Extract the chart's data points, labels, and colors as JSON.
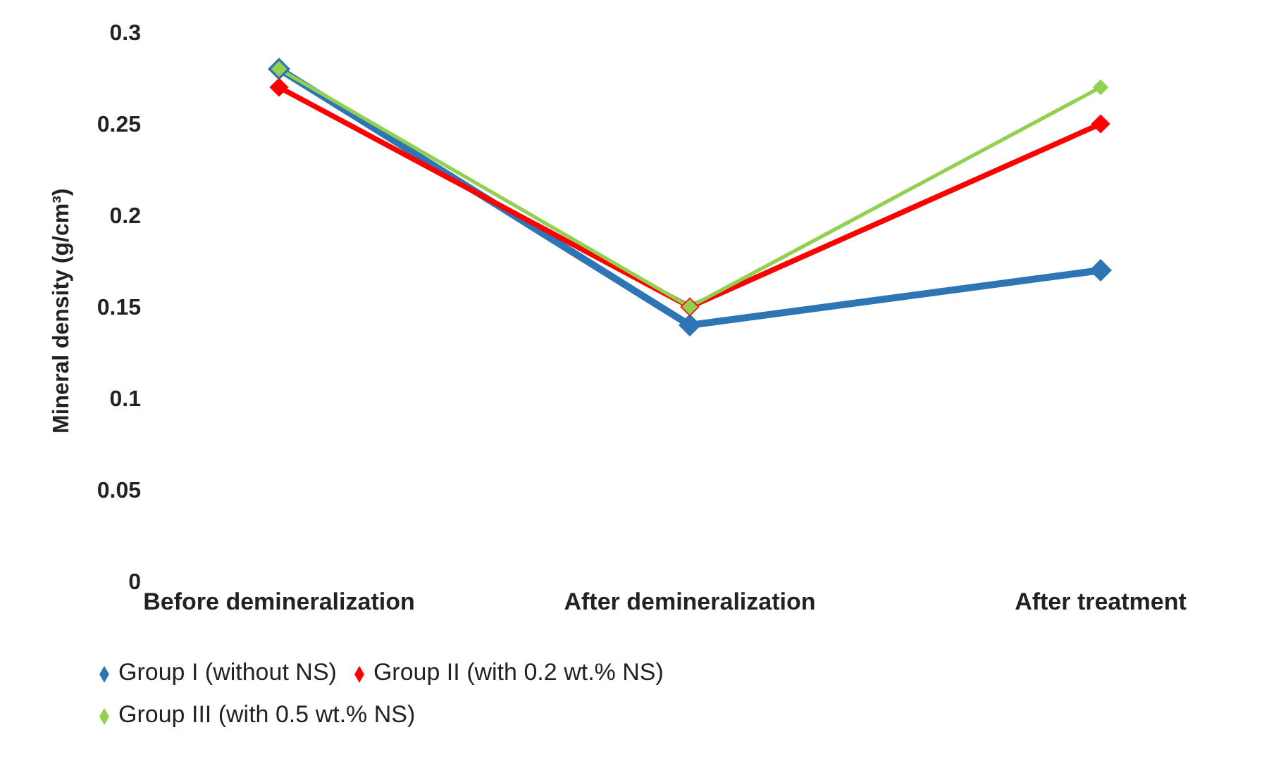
{
  "chart_data": {
    "type": "line",
    "ylabel": "Mineral density (g/cm³)",
    "categories": [
      "Before demineralization",
      "After demineralization",
      "After treatment"
    ],
    "series": [
      {
        "name": "Group I (without NS)",
        "color": "#2e75b6",
        "values": [
          0.28,
          0.14,
          0.17
        ]
      },
      {
        "name": "Group II (with 0.2 wt.% NS)",
        "color": "#ff0000",
        "values": [
          0.27,
          0.15,
          0.25
        ]
      },
      {
        "name": "Group III (with 0.5 wt.% NS)",
        "color": "#92d050",
        "values": [
          0.28,
          0.15,
          0.27
        ]
      }
    ],
    "ylim": [
      0,
      0.3
    ],
    "yticks": [
      0,
      0.05,
      0.1,
      0.15,
      0.2,
      0.25,
      0.3
    ],
    "grid": false,
    "legend": "bottom",
    "marker": "diamond",
    "line_style": "solid"
  }
}
